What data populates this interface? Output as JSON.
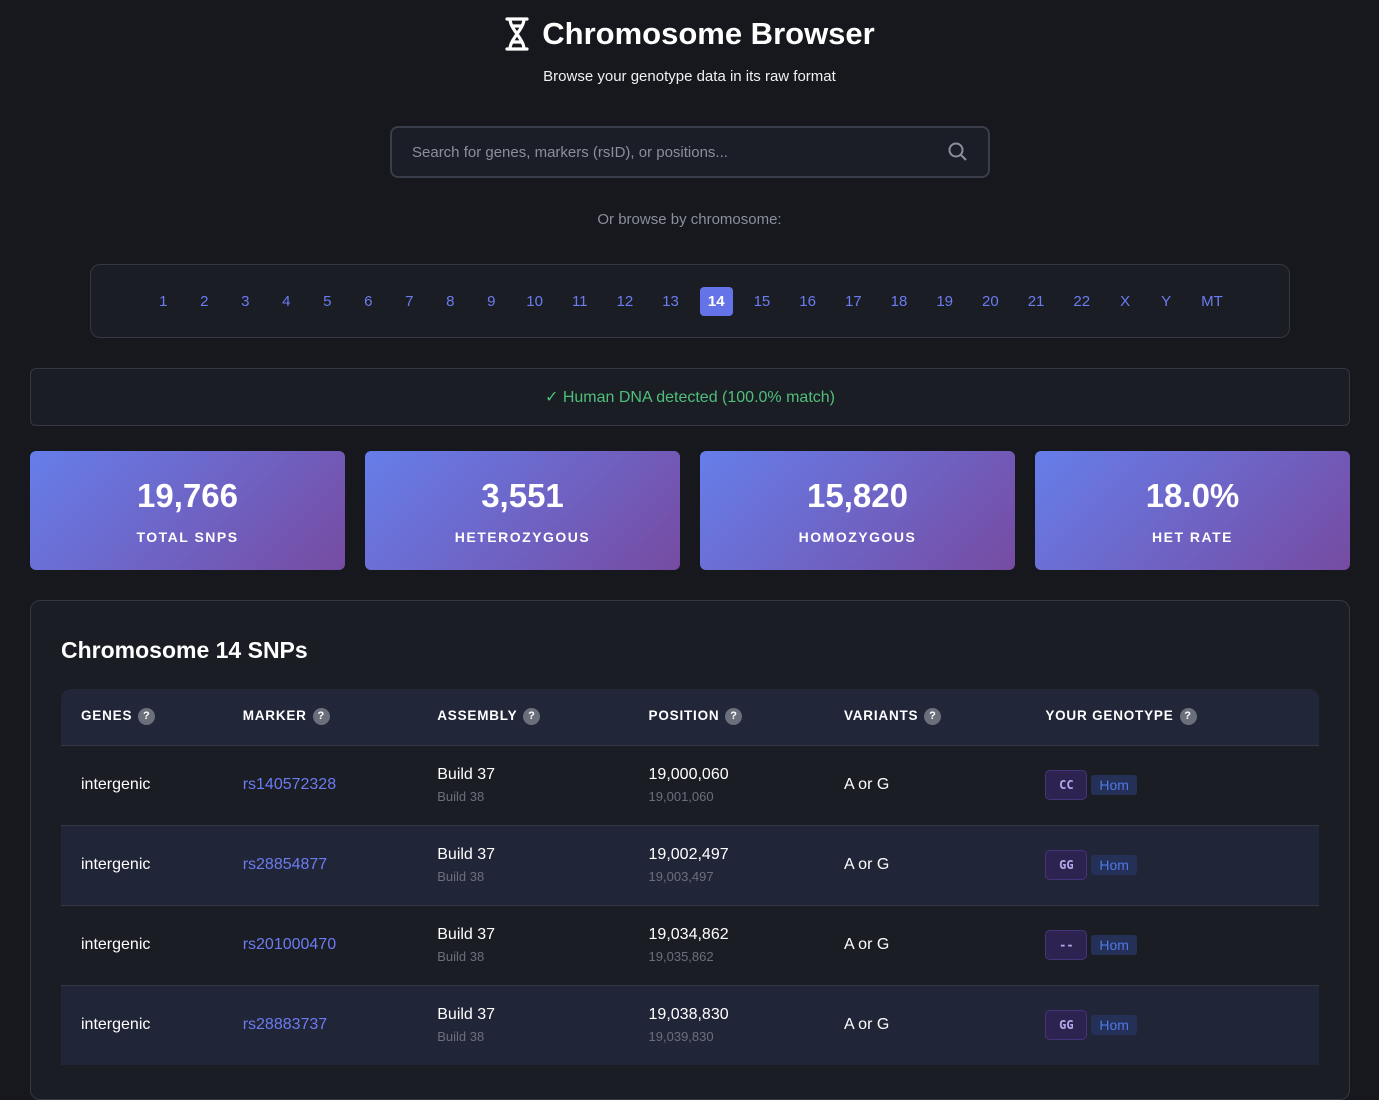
{
  "header": {
    "title": "Chromosome Browser",
    "subtitle": "Browse your genotype data in its raw format"
  },
  "search": {
    "placeholder": "Search for genes, markers (rsID), or positions..."
  },
  "browse_label": "Or browse by chromosome:",
  "chromosomes": [
    "1",
    "2",
    "3",
    "4",
    "5",
    "6",
    "7",
    "8",
    "9",
    "10",
    "11",
    "12",
    "13",
    "14",
    "15",
    "16",
    "17",
    "18",
    "19",
    "20",
    "21",
    "22",
    "X",
    "Y",
    "MT"
  ],
  "active_chromosome": "14",
  "banner": "✓ Human DNA detected (100.0% match)",
  "stats": [
    {
      "value": "19,766",
      "label": "TOTAL SNPS"
    },
    {
      "value": "3,551",
      "label": "HETEROZYGOUS"
    },
    {
      "value": "15,820",
      "label": "HOMOZYGOUS"
    },
    {
      "value": "18.0%",
      "label": "HET RATE"
    }
  ],
  "table": {
    "title": "Chromosome 14 SNPs",
    "columns": [
      "GENES",
      "MARKER",
      "ASSEMBLY",
      "POSITION",
      "VARIANTS",
      "YOUR GENOTYPE"
    ],
    "rows": [
      {
        "gene": "intergenic",
        "marker": "rs140572328",
        "build": "Build 37",
        "build2": "Build 38",
        "pos": "19,000,060",
        "pos2": "19,001,060",
        "variants": "A or G",
        "genotype": "CC",
        "zyg": "Hom"
      },
      {
        "gene": "intergenic",
        "marker": "rs28854877",
        "build": "Build 37",
        "build2": "Build 38",
        "pos": "19,002,497",
        "pos2": "19,003,497",
        "variants": "A or G",
        "genotype": "GG",
        "zyg": "Hom"
      },
      {
        "gene": "intergenic",
        "marker": "rs201000470",
        "build": "Build 37",
        "build2": "Build 38",
        "pos": "19,034,862",
        "pos2": "19,035,862",
        "variants": "A or G",
        "genotype": "--",
        "zyg": "Hom"
      },
      {
        "gene": "intergenic",
        "marker": "rs28883737",
        "build": "Build 37",
        "build2": "Build 38",
        "pos": "19,038,830",
        "pos2": "19,039,830",
        "variants": "A or G",
        "genotype": "GG",
        "zyg": "Hom"
      }
    ]
  }
}
